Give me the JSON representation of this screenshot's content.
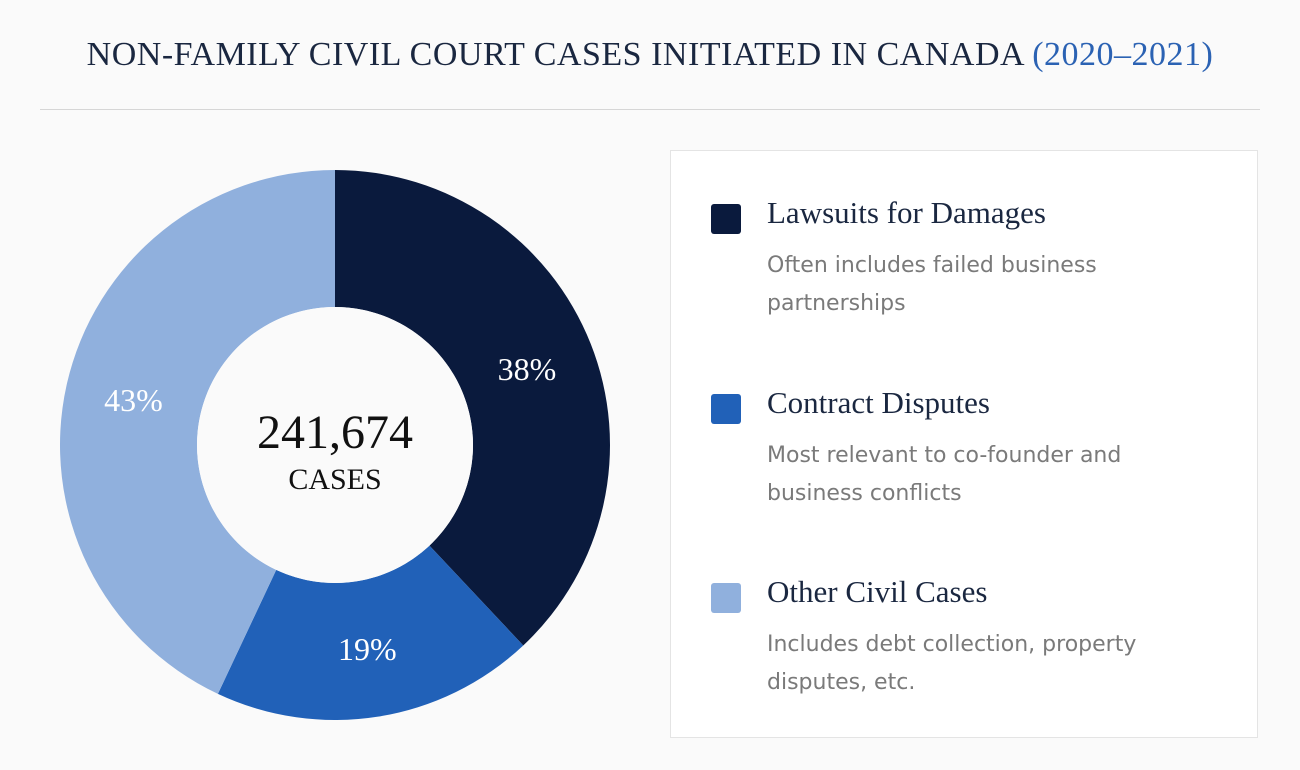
{
  "header": {
    "title_main": "NON-FAMILY CIVIL COURT CASES INITIATED IN CANADA",
    "title_highlight": "(2020–2021)"
  },
  "chart_data": {
    "type": "pie",
    "style": "donut",
    "title": "NON-FAMILY CIVIL COURT CASES INITIATED IN CANADA (2020–2021)",
    "total_value": "241,674",
    "total_label": "CASES",
    "series": [
      {
        "name": "Lawsuits for Damages",
        "value": 38,
        "label": "38%",
        "color": "#0a1a3d"
      },
      {
        "name": "Contract Disputes",
        "value": 19,
        "label": "19%",
        "color": "#2161b8"
      },
      {
        "name": "Other Civil Cases",
        "value": 43,
        "label": "43%",
        "color": "#90b0dd"
      }
    ]
  },
  "legend": {
    "items": [
      {
        "label": "Lawsuits for Damages",
        "description": "Often includes failed business partnerships",
        "color": "#0a1a3d"
      },
      {
        "label": "Contract Disputes",
        "description": "Most relevant to co-founder and business conflicts",
        "color": "#2161b8"
      },
      {
        "label": "Other Civil Cases",
        "description": "Includes debt collection, property disputes, etc.",
        "color": "#90b0dd"
      }
    ]
  }
}
